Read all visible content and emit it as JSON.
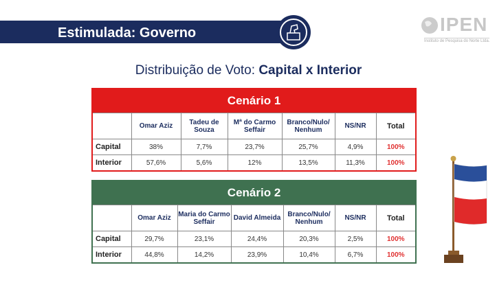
{
  "header": {
    "title": "Estimulada: Governo",
    "logo": "IPEN",
    "logo_tagline": "Instituto de Pesquisa do Norte Ltda."
  },
  "subtitle": {
    "prefix": "Distribuição de Voto: ",
    "bold": "Capital x Interior"
  },
  "colors": {
    "banner": "#1b2c5e",
    "scenario1": "#e11b1b",
    "scenario2": "#3f7150",
    "total": "#e03030"
  },
  "tables": [
    {
      "title": "Cenário 1",
      "columns": [
        "Omar Aziz",
        "Tadeu de Souza",
        "Mª do Carmo Seffair",
        "Branco/Nulo/ Nenhum",
        "NS/NR",
        "Total"
      ],
      "rows": [
        {
          "label": "Capital",
          "values": [
            "38%",
            "7,7%",
            "23,7%",
            "25,7%",
            "4,9%",
            "100%"
          ]
        },
        {
          "label": "Interior",
          "values": [
            "57,6%",
            "5,6%",
            "12%",
            "13,5%",
            "11,3%",
            "100%"
          ]
        }
      ]
    },
    {
      "title": "Cenário 2",
      "columns": [
        "Omar Aziz",
        "Maria do Carmo Seffair",
        "David Almeida",
        "Branco/Nulo/ Nenhum",
        "NS/NR",
        "Total"
      ],
      "rows": [
        {
          "label": "Capital",
          "values": [
            "29,7%",
            "23,1%",
            "24,4%",
            "20,3%",
            "2,5%",
            "100%"
          ]
        },
        {
          "label": "Interior",
          "values": [
            "44,8%",
            "14,2%",
            "23,9%",
            "10,4%",
            "6,7%",
            "100%"
          ]
        }
      ]
    }
  ]
}
